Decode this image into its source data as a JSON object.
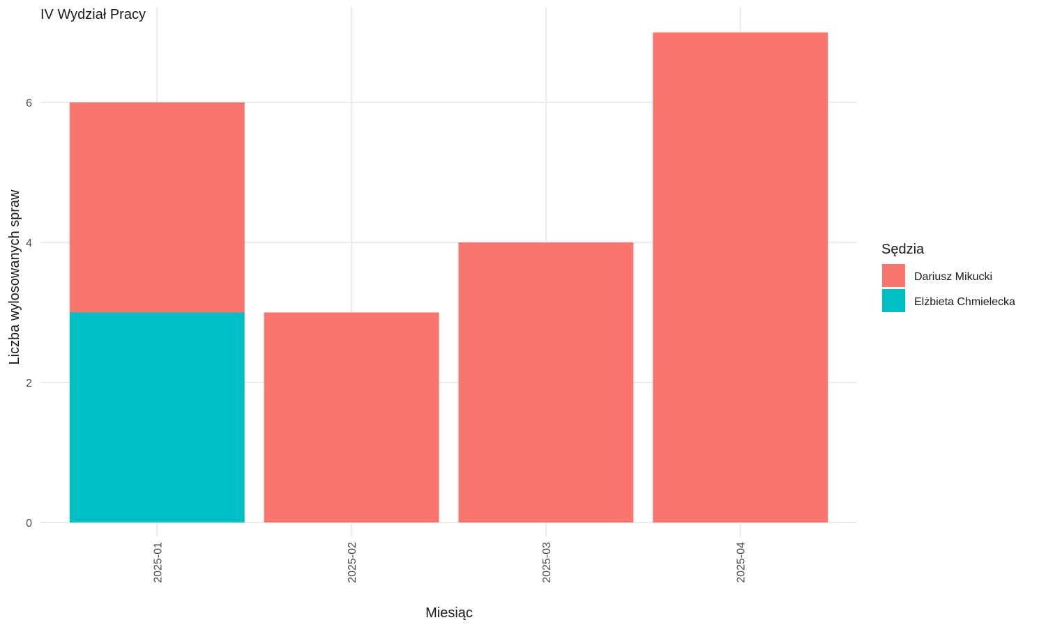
{
  "chart_data": {
    "type": "bar",
    "stacked": true,
    "title": "IV Wydział Pracy",
    "xlabel": "Miesiąc",
    "ylabel": "Liczba wylosowanych spraw",
    "categories": [
      "2025-01",
      "2025-02",
      "2025-03",
      "2025-04"
    ],
    "series": [
      {
        "name": "Elżbieta Chmielecka",
        "color": "#00BFC4",
        "values": [
          3,
          0,
          0,
          0
        ]
      },
      {
        "name": "Dariusz Mikucki",
        "color": "#F8766D",
        "values": [
          3,
          3,
          4,
          7
        ]
      }
    ],
    "ylim": [
      0,
      7
    ],
    "yticks": [
      0,
      2,
      4,
      6
    ],
    "grid": true,
    "legend": {
      "title": "Sędzia",
      "placement": "right",
      "items": [
        {
          "label": "Dariusz Mikucki",
          "color": "#F8766D"
        },
        {
          "label": "Elżbieta Chmielecka",
          "color": "#00BFC4"
        }
      ]
    }
  }
}
